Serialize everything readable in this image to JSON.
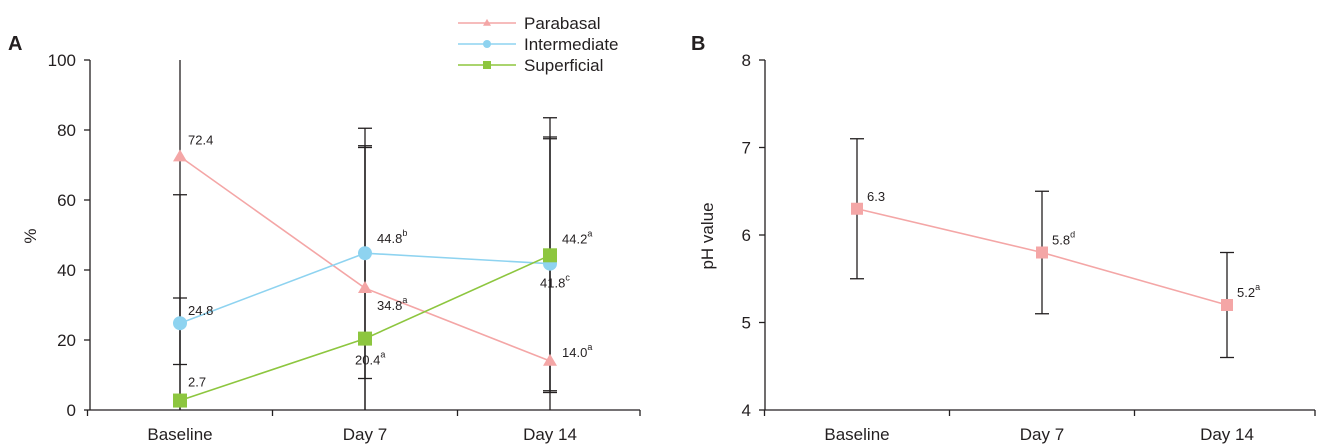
{
  "chart_data": [
    {
      "panel": "A",
      "type": "line",
      "categories": [
        "Baseline",
        "Day 7",
        "Day 14"
      ],
      "ylabel": "%",
      "ylim": [
        0,
        100
      ],
      "yticks": [
        "0",
        "20",
        "40",
        "60",
        "80",
        "100"
      ],
      "legend": {
        "placement": "top-center"
      },
      "series": [
        {
          "name": "Parabasal",
          "color": "#f4a6a6",
          "marker": "triangle",
          "values": [
            72.4,
            34.8,
            14.0
          ],
          "err_low": [
            13,
            9,
            5
          ],
          "err_high": [
            100,
            80.5,
            83.5
          ],
          "labels": [
            {
              "text": "72.4",
              "sup": ""
            },
            {
              "text": "34.8",
              "sup": "a"
            },
            {
              "text": "14.0",
              "sup": "a"
            }
          ]
        },
        {
          "name": "Intermediate",
          "color": "#8ed3f0",
          "marker": "circle",
          "values": [
            24.8,
            44.8,
            41.8
          ],
          "err_low": [
            0,
            0,
            0
          ],
          "err_high": [
            61.5,
            75,
            77.5
          ],
          "labels": [
            {
              "text": "24.8",
              "sup": ""
            },
            {
              "text": "44.8",
              "sup": "b"
            },
            {
              "text": "41.8",
              "sup": "c"
            }
          ]
        },
        {
          "name": "Superficial",
          "color": "#8dc63f",
          "marker": "square",
          "values": [
            2.7,
            20.4,
            44.2
          ],
          "err_low": [
            0,
            0,
            5.5
          ],
          "err_high": [
            32,
            75.5,
            78
          ],
          "labels": [
            {
              "text": "2.7",
              "sup": ""
            },
            {
              "text": "20.4",
              "sup": "a"
            },
            {
              "text": "44.2",
              "sup": "a"
            }
          ]
        }
      ]
    },
    {
      "panel": "B",
      "type": "line",
      "categories": [
        "Baseline",
        "Day 7",
        "Day 14"
      ],
      "ylabel": "pH value",
      "ylim": [
        4,
        8
      ],
      "yticks": [
        "4",
        "5",
        "6",
        "7",
        "8"
      ],
      "series": [
        {
          "name": "",
          "color": "#f4a6a6",
          "marker": "square",
          "values": [
            6.3,
            5.8,
            5.2
          ],
          "err_low": [
            5.5,
            5.1,
            4.6
          ],
          "err_high": [
            7.1,
            6.5,
            5.8
          ],
          "labels": [
            {
              "text": "6.3",
              "sup": ""
            },
            {
              "text": "5.8",
              "sup": "d"
            },
            {
              "text": "5.2",
              "sup": "a"
            }
          ]
        }
      ]
    }
  ]
}
